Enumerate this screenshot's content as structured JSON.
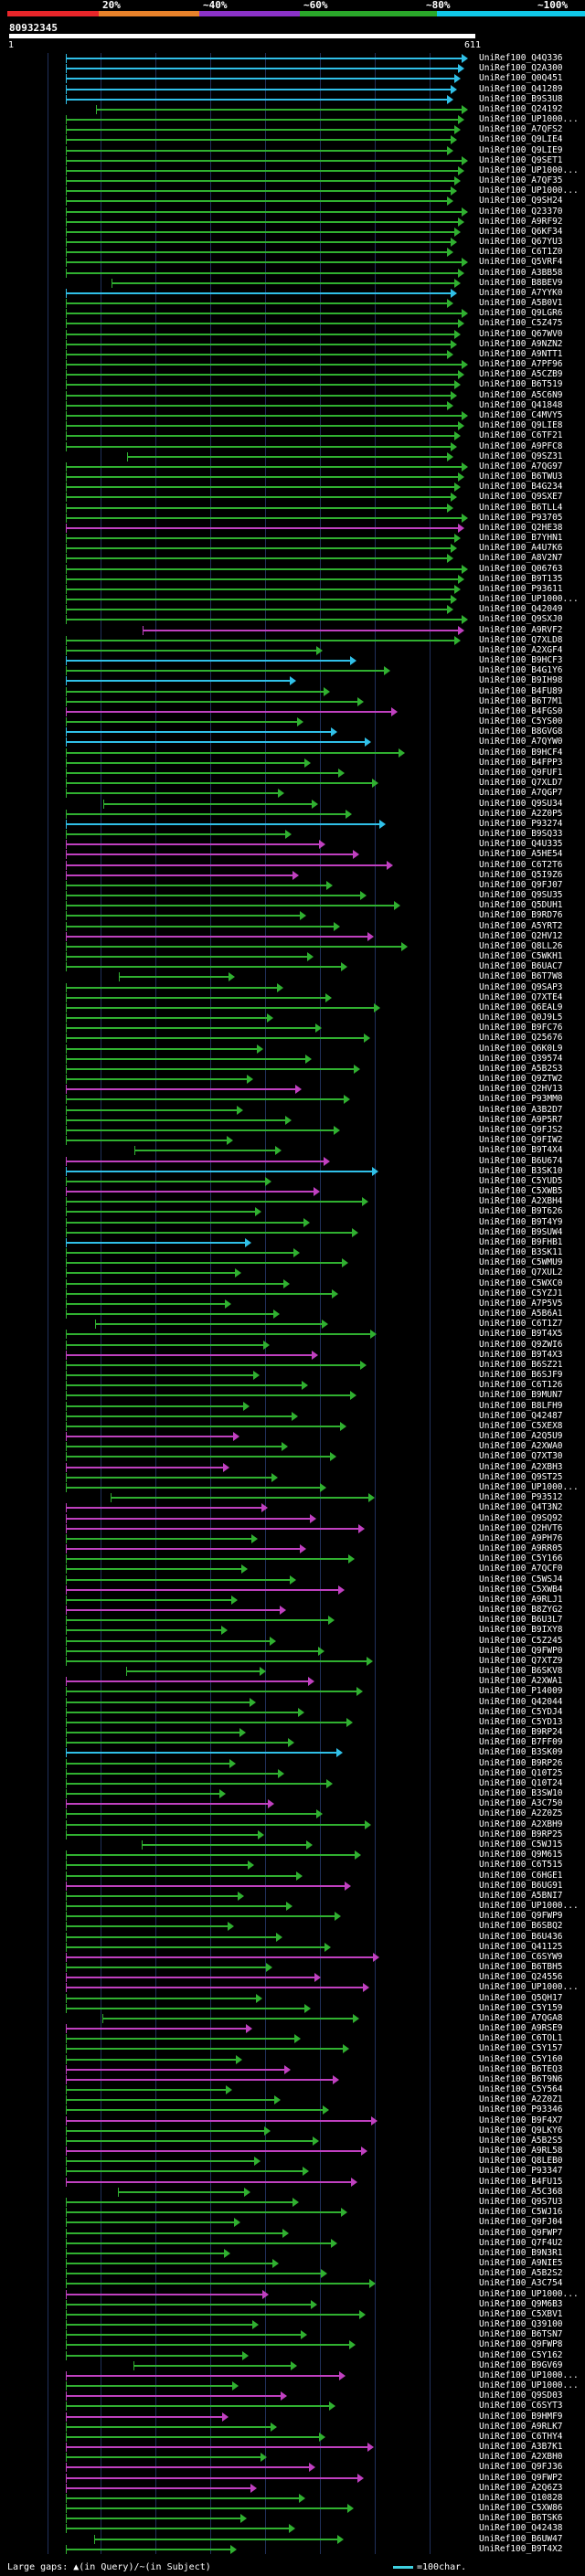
{
  "scale": {
    "labels": [
      "20%",
      "~40%",
      "~60%",
      "~80%",
      "~100%"
    ],
    "colors": [
      "#e8262a",
      "#e8822a",
      "#8b32c8",
      "#2aa82a",
      "#10c8e8"
    ]
  },
  "query": {
    "id": "80932345",
    "start": "1",
    "end": "611"
  },
  "footer": {
    "legend": "Large gaps: ▲(in Query)/~(in Subject)",
    "scale": "=100char."
  },
  "colors": {
    "cyan": "#30c0e8",
    "green": "#30b030",
    "magenta": "#c040c0",
    "background": "#000000",
    "grid": "#20305a"
  },
  "hits": [
    {
      "label": "UniRef100_Q4Q336",
      "color": "cyan"
    },
    {
      "label": "UniRef100_Q2A300",
      "color": "cyan"
    },
    {
      "label": "UniRef100_Q0Q451",
      "color": "cyan"
    },
    {
      "label": "UniRef100_Q41289",
      "color": "cyan"
    },
    {
      "label": "UniRef100_B9S3U8",
      "color": "cyan"
    },
    {
      "label": "UniRef100_Q24192",
      "color": "green"
    },
    {
      "label": "UniRef100_UP1000...",
      "color": "green"
    },
    {
      "label": "UniRef100_A7QFS2",
      "color": "green"
    },
    {
      "label": "UniRef100_Q9LIE4",
      "color": "green"
    },
    {
      "label": "UniRef100_Q9LIE9",
      "color": "green"
    },
    {
      "label": "UniRef100_Q9SET1",
      "color": "green"
    },
    {
      "label": "UniRef100_UP1000...",
      "color": "green"
    },
    {
      "label": "UniRef100_A7QF35",
      "color": "green"
    },
    {
      "label": "UniRef100_UP1000...",
      "color": "green"
    },
    {
      "label": "UniRef100_Q9SH24",
      "color": "green"
    },
    {
      "label": "UniRef100_Q23370",
      "color": "green"
    },
    {
      "label": "UniRef100_A9RF92",
      "color": "green"
    },
    {
      "label": "UniRef100_Q6KF34",
      "color": "green"
    },
    {
      "label": "UniRef100_Q67YU3",
      "color": "green"
    },
    {
      "label": "UniRef100_C6T1Z0",
      "color": "green"
    },
    {
      "label": "UniRef100_Q5VRF4",
      "color": "green"
    },
    {
      "label": "UniRef100_A3BB58",
      "color": "green"
    },
    {
      "label": "UniRef100_B8BEV9",
      "color": "green"
    },
    {
      "label": "UniRef100_A7YYK0",
      "color": "cyan"
    },
    {
      "label": "UniRef100_A5B0V1",
      "color": "green"
    },
    {
      "label": "UniRef100_Q9LGR6",
      "color": "green"
    },
    {
      "label": "UniRef100_C5Z475",
      "color": "green"
    },
    {
      "label": "UniRef100_Q67WV0",
      "color": "green"
    },
    {
      "label": "UniRef100_A9NZN2",
      "color": "green"
    },
    {
      "label": "UniRef100_A9NTT1",
      "color": "green"
    },
    {
      "label": "UniRef100_A7PF96",
      "color": "green"
    },
    {
      "label": "UniRef100_A5CZB9",
      "color": "green"
    },
    {
      "label": "UniRef100_B6T519",
      "color": "green"
    },
    {
      "label": "UniRef100_A5C6N9",
      "color": "green"
    },
    {
      "label": "UniRef100_Q41848",
      "color": "green"
    },
    {
      "label": "UniRef100_C4MVY5",
      "color": "green"
    },
    {
      "label": "UniRef100_Q9LIE8",
      "color": "green"
    },
    {
      "label": "UniRef100_C6TF21",
      "color": "green"
    },
    {
      "label": "UniRef100_A9PFC8",
      "color": "green"
    },
    {
      "label": "UniRef100_Q9SZ31",
      "color": "green"
    },
    {
      "label": "UniRef100_A7QG97",
      "color": "green"
    },
    {
      "label": "UniRef100_B6TWU3",
      "color": "green"
    },
    {
      "label": "UniRef100_B4G234",
      "color": "green"
    },
    {
      "label": "UniRef100_Q9SXE7",
      "color": "green"
    },
    {
      "label": "UniRef100_B6TLL4",
      "color": "green"
    },
    {
      "label": "UniRef100_P93705",
      "color": "green"
    },
    {
      "label": "UniRef100_Q2HE38",
      "color": "magenta"
    },
    {
      "label": "UniRef100_B7YHN1",
      "color": "green"
    },
    {
      "label": "UniRef100_A4U7K6",
      "color": "green"
    },
    {
      "label": "UniRef100_A8V2N7",
      "color": "green"
    },
    {
      "label": "UniRef100_Q06763",
      "color": "green"
    },
    {
      "label": "UniRef100_B9T135",
      "color": "green"
    },
    {
      "label": "UniRef100_P93611",
      "color": "green"
    },
    {
      "label": "UniRef100_UP1000...",
      "color": "green"
    },
    {
      "label": "UniRef100_Q42049",
      "color": "green"
    },
    {
      "label": "UniRef100_Q9SXJ0",
      "color": "green"
    },
    {
      "label": "UniRef100_A9RVF2",
      "color": "magenta"
    },
    {
      "label": "UniRef100_Q7XLD8",
      "color": "green"
    },
    {
      "label": "UniRef100_A2XGF4",
      "color": "green"
    },
    {
      "label": "UniRef100_B9HCF3",
      "color": "cyan"
    },
    {
      "label": "UniRef100_B4G1Y6",
      "color": "green"
    },
    {
      "label": "UniRef100_B9IH98",
      "color": "cyan"
    },
    {
      "label": "UniRef100_B4FU89",
      "color": "green"
    },
    {
      "label": "UniRef100_B6T7M1",
      "color": "green"
    },
    {
      "label": "UniRef100_B4FGS0",
      "color": "magenta"
    },
    {
      "label": "UniRef100_C5YS00",
      "color": "green"
    },
    {
      "label": "UniRef100_B8GVG8",
      "color": "cyan"
    },
    {
      "label": "UniRef100_A7QYW0",
      "color": "cyan"
    },
    {
      "label": "UniRef100_B9HCF4",
      "color": "green"
    },
    {
      "label": "UniRef100_B4FPP3",
      "color": "green"
    },
    {
      "label": "UniRef100_Q9FUF1",
      "color": "green"
    },
    {
      "label": "UniRef100_Q7XLD7",
      "color": "green"
    },
    {
      "label": "UniRef100_A7QGP7",
      "color": "green"
    },
    {
      "label": "UniRef100_Q9SU34",
      "color": "green"
    },
    {
      "label": "UniRef100_A2Z0P5",
      "color": "green"
    },
    {
      "label": "UniRef100_P93274",
      "color": "cyan"
    },
    {
      "label": "UniRef100_B9SQ33",
      "color": "green"
    },
    {
      "label": "UniRef100_Q4U335",
      "color": "magenta"
    },
    {
      "label": "UniRef100_A5HE54",
      "color": "magenta"
    },
    {
      "label": "UniRef100_C6T2T6",
      "color": "magenta"
    },
    {
      "label": "UniRef100_Q5I9Z6",
      "color": "magenta"
    },
    {
      "label": "UniRef100_Q9FJ07",
      "color": "green"
    },
    {
      "label": "UniRef100_Q9SU35",
      "color": "green"
    },
    {
      "label": "UniRef100_Q5DUH1",
      "color": "green"
    },
    {
      "label": "UniRef100_B9RD76",
      "color": "green"
    },
    {
      "label": "UniRef100_A5YRT2",
      "color": "green"
    },
    {
      "label": "UniRef100_Q2HV12",
      "color": "magenta"
    },
    {
      "label": "UniRef100_Q8LL26",
      "color": "green"
    },
    {
      "label": "UniRef100_C5WKH1",
      "color": "green"
    },
    {
      "label": "UniRef100_B6UAC7",
      "color": "green"
    },
    {
      "label": "UniRef100_B6T7W8",
      "color": "green"
    },
    {
      "label": "UniRef100_Q9SAP3",
      "color": "green"
    },
    {
      "label": "UniRef100_Q7XTE4",
      "color": "green"
    },
    {
      "label": "UniRef100_Q6EAL9",
      "color": "green"
    },
    {
      "label": "UniRef100_Q0J9L5",
      "color": "green"
    },
    {
      "label": "UniRef100_B9FC76",
      "color": "green"
    },
    {
      "label": "UniRef100_Q25676",
      "color": "green"
    },
    {
      "label": "UniRef100_Q6K0L9",
      "color": "green"
    },
    {
      "label": "UniRef100_Q39574",
      "color": "green"
    },
    {
      "label": "UniRef100_A5B2S3",
      "color": "green"
    },
    {
      "label": "UniRef100_Q9ZTW2",
      "color": "green"
    },
    {
      "label": "UniRef100_Q2HV13",
      "color": "magenta"
    },
    {
      "label": "UniRef100_P93MM0",
      "color": "green"
    },
    {
      "label": "UniRef100_A3B2D7",
      "color": "green"
    },
    {
      "label": "UniRef100_A9P5R7",
      "color": "green"
    },
    {
      "label": "UniRef100_Q9FJS2",
      "color": "green"
    },
    {
      "label": "UniRef100_Q9FIW2",
      "color": "green"
    },
    {
      "label": "UniRef100_B9T4X4",
      "color": "green"
    },
    {
      "label": "UniRef100_B6U674",
      "color": "magenta"
    },
    {
      "label": "UniRef100_B3SK10",
      "color": "cyan"
    },
    {
      "label": "UniRef100_C5YUD5",
      "color": "green"
    },
    {
      "label": "UniRef100_C5XWB5",
      "color": "magenta"
    },
    {
      "label": "UniRef100_A2XBH4",
      "color": "green"
    },
    {
      "label": "UniRef100_B9T626",
      "color": "green"
    },
    {
      "label": "UniRef100_B9T4Y9",
      "color": "green"
    },
    {
      "label": "UniRef100_B9SUW4",
      "color": "green"
    },
    {
      "label": "UniRef100_B9FHB1",
      "color": "cyan"
    },
    {
      "label": "UniRef100_B3SK11",
      "color": "green"
    },
    {
      "label": "UniRef100_C5WMU9",
      "color": "green"
    },
    {
      "label": "UniRef100_Q7XUL2",
      "color": "green"
    },
    {
      "label": "UniRef100_C5WXC0",
      "color": "green"
    },
    {
      "label": "UniRef100_C5YZJ1",
      "color": "green"
    },
    {
      "label": "UniRef100_A7P5V5",
      "color": "green"
    },
    {
      "label": "UniRef100_A5B6A1",
      "color": "green"
    },
    {
      "label": "UniRef100_C6T1Z7",
      "color": "green"
    },
    {
      "label": "UniRef100_B9T4X5",
      "color": "green"
    },
    {
      "label": "UniRef100_Q9ZWI6",
      "color": "green"
    },
    {
      "label": "UniRef100_B9T4X3",
      "color": "magenta"
    },
    {
      "label": "UniRef100_B6SZ21",
      "color": "green"
    },
    {
      "label": "UniRef100_B6SJF9",
      "color": "green"
    },
    {
      "label": "UniRef100_C6T126",
      "color": "green"
    },
    {
      "label": "UniRef100_B9MUN7",
      "color": "green"
    },
    {
      "label": "UniRef100_B8LFH9",
      "color": "green"
    },
    {
      "label": "UniRef100_Q42487",
      "color": "green"
    },
    {
      "label": "UniRef100_C5XEX8",
      "color": "green"
    },
    {
      "label": "UniRef100_A2Q5U9",
      "color": "magenta"
    },
    {
      "label": "UniRef100_A2XWA0",
      "color": "green"
    },
    {
      "label": "UniRef100_Q7XT30",
      "color": "green"
    },
    {
      "label": "UniRef100_A2XBH3",
      "color": "magenta"
    },
    {
      "label": "UniRef100_Q9ST25",
      "color": "green"
    },
    {
      "label": "UniRef100_UP1000...",
      "color": "green"
    },
    {
      "label": "UniRef100_P93512",
      "color": "green"
    },
    {
      "label": "UniRef100_Q4T3N2",
      "color": "magenta"
    },
    {
      "label": "UniRef100_Q9SQ92",
      "color": "magenta"
    },
    {
      "label": "UniRef100_Q2HVT6",
      "color": "magenta"
    },
    {
      "label": "UniRef100_A9PH76",
      "color": "green"
    },
    {
      "label": "UniRef100_A9RR05",
      "color": "magenta"
    },
    {
      "label": "UniRef100_C5Y166",
      "color": "green"
    },
    {
      "label": "UniRef100_A7QCF0",
      "color": "green"
    },
    {
      "label": "UniRef100_C5WSJ4",
      "color": "green"
    },
    {
      "label": "UniRef100_C5XWB4",
      "color": "magenta"
    },
    {
      "label": "UniRef100_A9RLJ1",
      "color": "green"
    },
    {
      "label": "UniRef100_B8ZYG2",
      "color": "magenta"
    },
    {
      "label": "UniRef100_B6U3L7",
      "color": "green"
    },
    {
      "label": "UniRef100_B9IXY8",
      "color": "green"
    },
    {
      "label": "UniRef100_C5Z245",
      "color": "green"
    },
    {
      "label": "UniRef100_Q9FWP0",
      "color": "green"
    },
    {
      "label": "UniRef100_Q7XTZ9",
      "color": "green"
    },
    {
      "label": "UniRef100_B6SKV8",
      "color": "green"
    },
    {
      "label": "UniRef100_A2XWA1",
      "color": "magenta"
    },
    {
      "label": "UniRef100_P14009",
      "color": "green"
    },
    {
      "label": "UniRef100_Q42044",
      "color": "green"
    },
    {
      "label": "UniRef100_C5YDJ4",
      "color": "green"
    },
    {
      "label": "UniRef100_C5YD13",
      "color": "green"
    },
    {
      "label": "UniRef100_B9RP24",
      "color": "green"
    },
    {
      "label": "UniRef100_B7FF09",
      "color": "green"
    },
    {
      "label": "UniRef100_B3SK09",
      "color": "cyan"
    },
    {
      "label": "UniRef100_B9RP26",
      "color": "green"
    },
    {
      "label": "UniRef100_Q10T25",
      "color": "green"
    },
    {
      "label": "UniRef100_Q10T24",
      "color": "green"
    },
    {
      "label": "UniRef100_B3SW10",
      "color": "green"
    },
    {
      "label": "UniRef100_A3C750",
      "color": "magenta"
    },
    {
      "label": "UniRef100_A2Z0Z5",
      "color": "green"
    },
    {
      "label": "UniRef100_A2XBH9",
      "color": "green"
    },
    {
      "label": "UniRef100_B9RP25",
      "color": "green"
    },
    {
      "label": "UniRef100_C5WJ15",
      "color": "green"
    },
    {
      "label": "UniRef100_Q9M615",
      "color": "green"
    },
    {
      "label": "UniRef100_C6T515",
      "color": "green"
    },
    {
      "label": "UniRef100_C6HGE1",
      "color": "green"
    },
    {
      "label": "UniRef100_B6UG91",
      "color": "magenta"
    },
    {
      "label": "UniRef100_A5BNI7",
      "color": "green"
    },
    {
      "label": "UniRef100_UP1000...",
      "color": "green"
    },
    {
      "label": "UniRef100_Q9FWP9",
      "color": "green"
    },
    {
      "label": "UniRef100_B6SBQ2",
      "color": "green"
    },
    {
      "label": "UniRef100_B6U436",
      "color": "green"
    },
    {
      "label": "UniRef100_Q41125",
      "color": "green"
    },
    {
      "label": "UniRef100_C6SYW9",
      "color": "magenta"
    },
    {
      "label": "UniRef100_B6TBH5",
      "color": "green"
    },
    {
      "label": "UniRef100_Q24556",
      "color": "magenta"
    },
    {
      "label": "UniRef100_UP1000...",
      "color": "magenta"
    },
    {
      "label": "UniRef100_Q5QH17",
      "color": "green"
    },
    {
      "label": "UniRef100_C5Y159",
      "color": "green"
    },
    {
      "label": "UniRef100_A7QGA8",
      "color": "green"
    },
    {
      "label": "UniRef100_A9RSE9",
      "color": "magenta"
    },
    {
      "label": "UniRef100_C6TOL1",
      "color": "green"
    },
    {
      "label": "UniRef100_C5Y157",
      "color": "green"
    },
    {
      "label": "UniRef100_C5Y160",
      "color": "green"
    },
    {
      "label": "UniRef100_B6TEQ3",
      "color": "magenta"
    },
    {
      "label": "UniRef100_B6T9N6",
      "color": "magenta"
    },
    {
      "label": "UniRef100_C5Y564",
      "color": "green"
    },
    {
      "label": "UniRef100_A2Z0Z1",
      "color": "green"
    },
    {
      "label": "UniRef100_P93346",
      "color": "green"
    },
    {
      "label": "UniRef100_B9F4X7",
      "color": "magenta"
    },
    {
      "label": "UniRef100_Q9LKY6",
      "color": "green"
    },
    {
      "label": "UniRef100_A5B2S5",
      "color": "green"
    },
    {
      "label": "UniRef100_A9RL58",
      "color": "magenta"
    },
    {
      "label": "UniRef100_Q8LEB0",
      "color": "green"
    },
    {
      "label": "UniRef100_P93347",
      "color": "green"
    },
    {
      "label": "UniRef100_B4FU15",
      "color": "magenta"
    },
    {
      "label": "UniRef100_A5C368",
      "color": "green"
    },
    {
      "label": "UniRef100_Q9S7U3",
      "color": "green"
    },
    {
      "label": "UniRef100_C5WJ16",
      "color": "green"
    },
    {
      "label": "UniRef100_Q9FJ04",
      "color": "green"
    },
    {
      "label": "UniRef100_Q9FWP7",
      "color": "green"
    },
    {
      "label": "UniRef100_Q7F4U2",
      "color": "green"
    },
    {
      "label": "UniRef100_B9N3R1",
      "color": "green"
    },
    {
      "label": "UniRef100_A9NIE5",
      "color": "green"
    },
    {
      "label": "UniRef100_A5B2S2",
      "color": "green"
    },
    {
      "label": "UniRef100_A3C754",
      "color": "green"
    },
    {
      "label": "UniRef100_UP1000...",
      "color": "magenta"
    },
    {
      "label": "UniRef100_Q9M6B3",
      "color": "green"
    },
    {
      "label": "UniRef100_C5XBV1",
      "color": "green"
    },
    {
      "label": "UniRef100_Q39100",
      "color": "green"
    },
    {
      "label": "UniRef100_B6TSN7",
      "color": "green"
    },
    {
      "label": "UniRef100_Q9FWP8",
      "color": "green"
    },
    {
      "label": "UniRef100_C5Y162",
      "color": "green"
    },
    {
      "label": "UniRef100_B9GV69",
      "color": "green"
    },
    {
      "label": "UniRef100_UP1000...",
      "color": "magenta"
    },
    {
      "label": "UniRef100_UP1000...",
      "color": "green"
    },
    {
      "label": "UniRef100_Q9SD03",
      "color": "magenta"
    },
    {
      "label": "UniRef100_C6SYT3",
      "color": "green"
    },
    {
      "label": "UniRef100_B9HMF9",
      "color": "magenta"
    },
    {
      "label": "UniRef100_A9RLK7",
      "color": "green"
    },
    {
      "label": "UniRef100_C6THY4",
      "color": "green"
    },
    {
      "label": "UniRef100_A3B7K1",
      "color": "magenta"
    },
    {
      "label": "UniRef100_A2XBH0",
      "color": "green"
    },
    {
      "label": "UniRef100_Q9FJ36",
      "color": "magenta"
    },
    {
      "label": "UniRef100_Q9FWP2",
      "color": "magenta"
    },
    {
      "label": "UniRef100_A2Q6Z3",
      "color": "magenta"
    },
    {
      "label": "UniRef100_Q10828",
      "color": "green"
    },
    {
      "label": "UniRef100_C5XW86",
      "color": "green"
    },
    {
      "label": "UniRef100_B6TSK6",
      "color": "green"
    },
    {
      "label": "UniRef100_Q42438",
      "color": "green"
    },
    {
      "label": "UniRef100_B6UW47",
      "color": "green"
    },
    {
      "label": "UniRef100_B9T4X2",
      "color": "green"
    }
  ]
}
